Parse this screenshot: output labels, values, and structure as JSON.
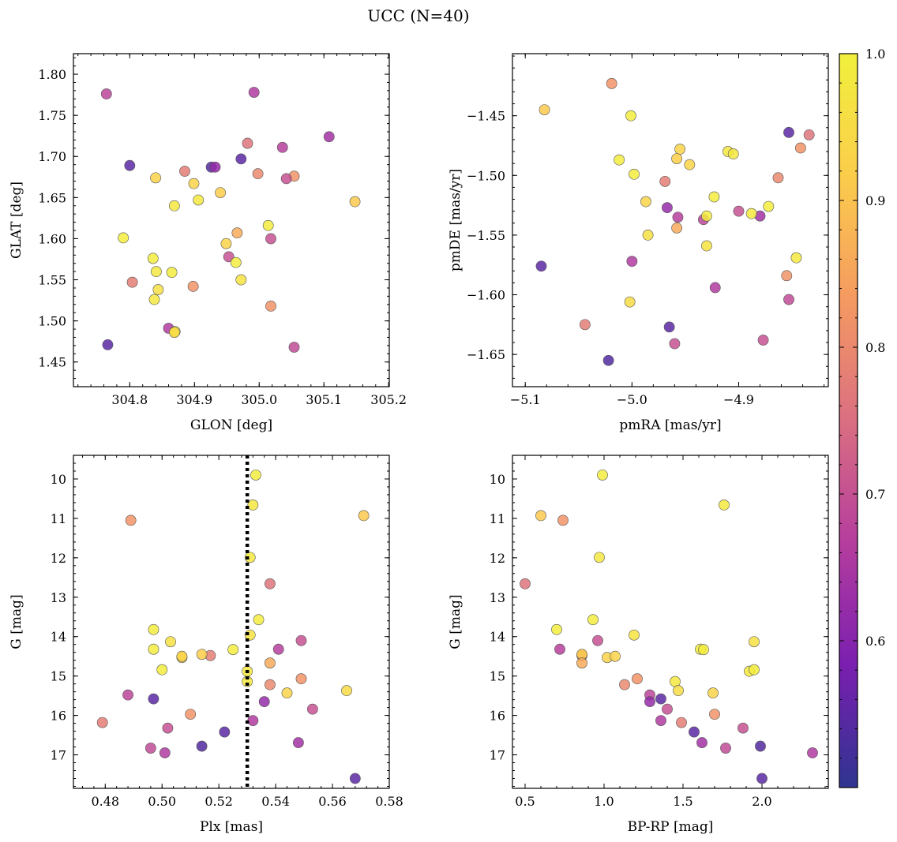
{
  "title": "UCC (N=40)",
  "chart_data": {
    "type": "scatter",
    "colormap": [
      "#2e3590",
      "#7a1fb0",
      "#b53d9e",
      "#da6f81",
      "#f59a61",
      "#fbcd4b",
      "#f1f03c"
    ],
    "colorbar": {
      "min": 0.5,
      "max": 1.0,
      "ticks": [
        0.6,
        0.7,
        0.8,
        0.9,
        1.0
      ],
      "tick_labels": [
        "0.6",
        "0.7",
        "0.8",
        "0.9",
        "1.0"
      ]
    },
    "stars": [
      {
        "glon": 304.764,
        "glat": 1.776,
        "pmra": -4.933,
        "pmde": -1.537,
        "plx": 0.488,
        "g": 15.48,
        "bprp": 1.29,
        "p": 0.68
      },
      {
        "glon": 304.992,
        "glat": 1.778,
        "pmra": -5.0,
        "pmde": -1.572,
        "plx": 0.501,
        "g": 16.95,
        "bprp": 2.32,
        "p": 0.66
      },
      {
        "glon": 304.8,
        "glat": 1.689,
        "pmra": -5.085,
        "pmde": -1.576,
        "plx": 0.497,
        "g": 15.58,
        "bprp": 1.36,
        "p": 0.55
      },
      {
        "glon": 304.926,
        "glat": 1.687,
        "pmra": -5.022,
        "pmde": -1.655,
        "plx": 0.514,
        "g": 16.78,
        "bprp": 1.99,
        "p": 0.54
      },
      {
        "glon": 304.972,
        "glat": 1.697,
        "pmra": -4.853,
        "pmde": -1.464,
        "plx": 0.522,
        "g": 16.42,
        "bprp": 1.57,
        "p": 0.55
      },
      {
        "glon": 304.932,
        "glat": 1.687,
        "pmra": -4.967,
        "pmde": -1.527,
        "plx": 0.536,
        "g": 15.65,
        "bprp": 1.29,
        "p": 0.62
      },
      {
        "glon": 305.108,
        "glat": 1.724,
        "pmra": -4.88,
        "pmde": -1.534,
        "plx": 0.548,
        "g": 16.69,
        "bprp": 1.62,
        "p": 0.64
      },
      {
        "glon": 305.036,
        "glat": 1.711,
        "pmra": -4.957,
        "pmde": -1.535,
        "plx": 0.541,
        "g": 14.32,
        "bprp": 0.72,
        "p": 0.67
      },
      {
        "glon": 304.982,
        "glat": 1.716,
        "pmra": -4.834,
        "pmde": -1.466,
        "plx": 0.538,
        "g": 12.66,
        "bprp": 0.5,
        "p": 0.76
      },
      {
        "glon": 304.885,
        "glat": 1.682,
        "pmra": -4.969,
        "pmde": -1.505,
        "plx": 0.517,
        "g": 14.48,
        "bprp": 0.86,
        "p": 0.78
      },
      {
        "glon": 304.998,
        "glat": 1.679,
        "pmra": -4.863,
        "pmde": -1.502,
        "plx": 0.538,
        "g": 15.22,
        "bprp": 1.13,
        "p": 0.8
      },
      {
        "glon": 305.054,
        "glat": 1.676,
        "pmra": -4.842,
        "pmde": -1.477,
        "plx": 0.549,
        "g": 15.07,
        "bprp": 1.21,
        "p": 0.82
      },
      {
        "glon": 305.042,
        "glat": 1.673,
        "pmra": -4.9,
        "pmde": -1.53,
        "plx": 0.549,
        "g": 14.1,
        "bprp": 0.96,
        "p": 0.7
      },
      {
        "glon": 304.84,
        "glat": 1.674,
        "pmra": -4.955,
        "pmde": -1.478,
        "plx": 0.507,
        "g": 14.53,
        "bprp": 1.02,
        "p": 0.93
      },
      {
        "glon": 304.94,
        "glat": 1.656,
        "pmra": -4.958,
        "pmde": -1.486,
        "plx": 0.514,
        "g": 14.45,
        "bprp": 0.86,
        "p": 0.92
      },
      {
        "glon": 304.899,
        "glat": 1.667,
        "pmra": -4.946,
        "pmde": -1.491,
        "plx": 0.544,
        "g": 15.43,
        "bprp": 1.69,
        "p": 0.93
      },
      {
        "glon": 305.148,
        "glat": 1.645,
        "pmra": -5.082,
        "pmde": -1.445,
        "plx": 0.571,
        "g": 10.93,
        "bprp": 0.6,
        "p": 0.91
      },
      {
        "glon": 304.869,
        "glat": 1.64,
        "pmra": -4.91,
        "pmde": -1.48,
        "plx": 0.531,
        "g": 11.99,
        "bprp": 0.97,
        "p": 0.98
      },
      {
        "glon": 304.906,
        "glat": 1.647,
        "pmra": -4.905,
        "pmde": -1.482,
        "plx": 0.532,
        "g": 10.66,
        "bprp": 1.76,
        "p": 0.98
      },
      {
        "glon": 304.79,
        "glat": 1.601,
        "pmra": -5.012,
        "pmde": -1.487,
        "plx": 0.534,
        "g": 13.57,
        "bprp": 0.93,
        "p": 0.99
      },
      {
        "glon": 305.014,
        "glat": 1.616,
        "pmra": -4.923,
        "pmde": -1.518,
        "plx": 0.533,
        "g": 9.9,
        "bprp": 0.99,
        "p": 0.99
      },
      {
        "glon": 304.966,
        "glat": 1.607,
        "pmra": -4.958,
        "pmde": -1.544,
        "plx": 0.538,
        "g": 14.67,
        "bprp": 0.86,
        "p": 0.86
      },
      {
        "glon": 304.949,
        "glat": 1.594,
        "pmra": -4.987,
        "pmde": -1.522,
        "plx": 0.507,
        "g": 14.5,
        "bprp": 1.07,
        "p": 0.93
      },
      {
        "glon": 305.018,
        "glat": 1.6,
        "pmra": -4.877,
        "pmde": -1.638,
        "plx": 0.553,
        "g": 15.84,
        "bprp": 1.4,
        "p": 0.7
      },
      {
        "glon": 304.953,
        "glat": 1.578,
        "pmra": -4.96,
        "pmde": -1.641,
        "plx": 0.502,
        "g": 16.32,
        "bprp": 1.88,
        "p": 0.7
      },
      {
        "glon": 304.836,
        "glat": 1.576,
        "pmra": -4.998,
        "pmde": -1.499,
        "plx": 0.497,
        "g": 14.32,
        "bprp": 1.61,
        "p": 0.99
      },
      {
        "glon": 304.964,
        "glat": 1.571,
        "pmra": -4.93,
        "pmde": -1.534,
        "plx": 0.497,
        "g": 13.82,
        "bprp": 0.7,
        "p": 0.99
      },
      {
        "glon": 304.841,
        "glat": 1.56,
        "pmra": -4.846,
        "pmde": -1.569,
        "plx": 0.53,
        "g": 14.88,
        "bprp": 1.92,
        "p": 0.98
      },
      {
        "glon": 304.865,
        "glat": 1.559,
        "pmra": -4.872,
        "pmde": -1.526,
        "plx": 0.525,
        "g": 14.33,
        "bprp": 1.63,
        "p": 0.99
      },
      {
        "glon": 304.972,
        "glat": 1.55,
        "pmra": -4.93,
        "pmde": -1.559,
        "plx": 0.531,
        "g": 13.96,
        "bprp": 1.19,
        "p": 0.97
      },
      {
        "glon": 304.804,
        "glat": 1.547,
        "pmra": -5.044,
        "pmde": -1.625,
        "plx": 0.479,
        "g": 16.18,
        "bprp": 1.49,
        "p": 0.78
      },
      {
        "glon": 304.898,
        "glat": 1.542,
        "pmra": -4.855,
        "pmde": -1.584,
        "plx": 0.51,
        "g": 15.97,
        "bprp": 1.7,
        "p": 0.82
      },
      {
        "glon": 304.844,
        "glat": 1.538,
        "pmra": -4.985,
        "pmde": -1.55,
        "plx": 0.503,
        "g": 14.13,
        "bprp": 1.95,
        "p": 0.96
      },
      {
        "glon": 304.838,
        "glat": 1.526,
        "pmra": -4.888,
        "pmde": -1.532,
        "plx": 0.53,
        "g": 15.14,
        "bprp": 1.45,
        "p": 0.98
      },
      {
        "glon": 305.018,
        "glat": 1.518,
        "pmra": -5.019,
        "pmde": -1.423,
        "plx": 0.489,
        "g": 11.05,
        "bprp": 0.74,
        "p": 0.82
      },
      {
        "glon": 304.86,
        "glat": 1.491,
        "pmra": -4.922,
        "pmde": -1.594,
        "plx": 0.532,
        "g": 16.13,
        "bprp": 1.36,
        "p": 0.66
      },
      {
        "glon": 304.87,
        "glat": 1.487,
        "pmra": -5.001,
        "pmde": -1.45,
        "plx": 0.5,
        "g": 14.84,
        "bprp": 1.95,
        "p": 0.99
      },
      {
        "glon": 304.869,
        "glat": 1.486,
        "pmra": -5.002,
        "pmde": -1.606,
        "plx": 0.565,
        "g": 15.37,
        "bprp": 1.47,
        "p": 0.95
      },
      {
        "glon": 304.766,
        "glat": 1.471,
        "pmra": -4.965,
        "pmde": -1.627,
        "plx": 0.568,
        "g": 17.6,
        "bprp": 2.0,
        "p": 0.55
      },
      {
        "glon": 305.054,
        "glat": 1.468,
        "pmra": -4.853,
        "pmde": -1.604,
        "plx": 0.496,
        "g": 16.83,
        "bprp": 1.77,
        "p": 0.69
      }
    ],
    "panels": [
      {
        "xkey": "glon",
        "ykey": "glat",
        "xlabel": "GLON [deg]",
        "ylabel": "GLAT [deg]",
        "xlim": [
          304.713,
          305.201
        ],
        "ylim": [
          1.42,
          1.825
        ],
        "yinvert": false,
        "xticks": [
          304.8,
          304.9,
          305.0,
          305.1,
          305.2
        ],
        "xtick_labels": [
          "304.8",
          "304.9",
          "305.0",
          "305.1",
          "305.2"
        ],
        "yticks": [
          1.45,
          1.5,
          1.55,
          1.6,
          1.65,
          1.7,
          1.75,
          1.8
        ],
        "ytick_labels": [
          "1.45",
          "1.50",
          "1.55",
          "1.60",
          "1.65",
          "1.70",
          "1.75",
          "1.80"
        ]
      },
      {
        "xkey": "pmra",
        "ykey": "pmde",
        "xlabel": "pmRA [mas/yr]",
        "ylabel": "pmDE [mas/yr]",
        "xlim": [
          -5.112,
          -4.816
        ],
        "ylim": [
          -1.677,
          -1.398
        ],
        "yinvert": false,
        "xticks": [
          -5.1,
          -5.0,
          -4.9
        ],
        "xtick_labels": [
          "−5.1",
          "−5.0",
          "−4.9"
        ],
        "yticks": [
          -1.65,
          -1.6,
          -1.55,
          -1.5,
          -1.45
        ],
        "ytick_labels": [
          "−1.65",
          "−1.60",
          "−1.55",
          "−1.50",
          "−1.45"
        ]
      },
      {
        "xkey": "plx",
        "ykey": "g",
        "xlabel": "Plx [mas]",
        "ylabel": "G [mag]",
        "xlim": [
          0.4688,
          0.58
        ],
        "ylim": [
          9.4,
          17.85
        ],
        "yinvert": true,
        "xticks": [
          0.48,
          0.5,
          0.52,
          0.54,
          0.56,
          0.58
        ],
        "xtick_labels": [
          "0.48",
          "0.50",
          "0.52",
          "0.54",
          "0.56",
          "0.58"
        ],
        "yticks": [
          10,
          11,
          12,
          13,
          14,
          15,
          16,
          17
        ],
        "ytick_labels": [
          "10",
          "11",
          "12",
          "13",
          "14",
          "15",
          "16",
          "17"
        ],
        "vline": 0.53
      },
      {
        "xkey": "bprp",
        "ykey": "g",
        "xlabel": "BP-RP [mag]",
        "ylabel": "G [mag]",
        "xlim": [
          0.42,
          2.42
        ],
        "ylim": [
          9.4,
          17.85
        ],
        "yinvert": true,
        "xticks": [
          0.5,
          1.0,
          1.5,
          2.0
        ],
        "xtick_labels": [
          "0.5",
          "1.0",
          "1.5",
          "2.0"
        ],
        "yticks": [
          10,
          11,
          12,
          13,
          14,
          15,
          16,
          17
        ],
        "ytick_labels": [
          "10",
          "11",
          "12",
          "13",
          "14",
          "15",
          "16",
          "17"
        ]
      }
    ]
  }
}
